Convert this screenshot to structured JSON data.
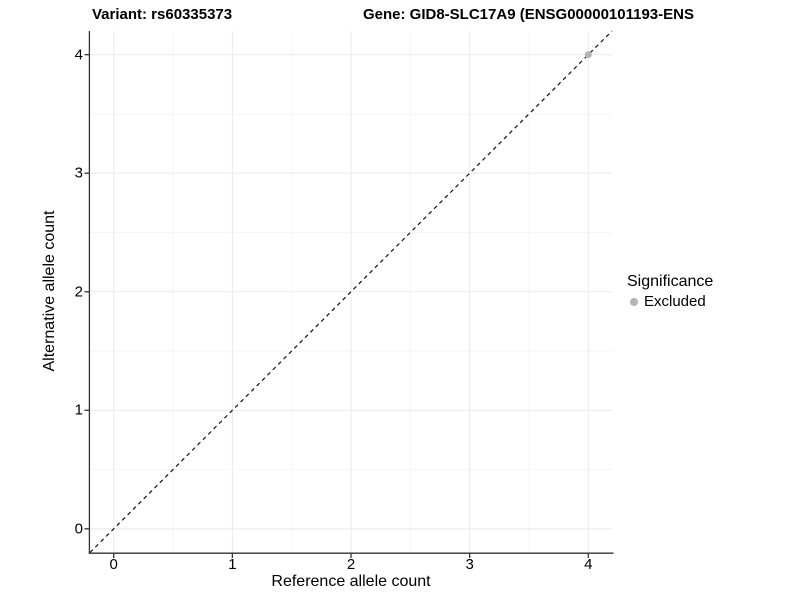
{
  "titles": {
    "variant": "Variant: rs60335373",
    "gene": "Gene: GID8-SLC17A9 (ENSG00000101193-ENS"
  },
  "chart_data": {
    "type": "scatter",
    "xlabel": "Reference allele count",
    "ylabel": "Alternative allele count",
    "xlim": [
      -0.2,
      4.2
    ],
    "ylim": [
      -0.2,
      4.2
    ],
    "x_ticks": [
      0,
      1,
      2,
      3,
      4
    ],
    "y_ticks": [
      0,
      1,
      2,
      3,
      4
    ],
    "minor_ticks": [
      0.5,
      1.5,
      2.5,
      3.5
    ],
    "grid": true,
    "points": [
      {
        "x": 4,
        "y": 4,
        "series": "Excluded"
      }
    ],
    "reference_line": {
      "type": "identity y=x",
      "style": "dashed",
      "from": [
        -0.2,
        -0.2
      ],
      "to": [
        4.2,
        4.2
      ]
    },
    "legend": {
      "title": "Significance",
      "position": "right",
      "items": [
        {
          "label": "Excluded",
          "color": "#b5b5b5"
        }
      ]
    },
    "colors": {
      "point_excluded": "#b5b5b5",
      "grid_major": "#ebebeb",
      "grid_minor": "#f6f6f6",
      "axis": "#333333",
      "dashed_line": "#111111",
      "background": "#ffffff"
    }
  }
}
